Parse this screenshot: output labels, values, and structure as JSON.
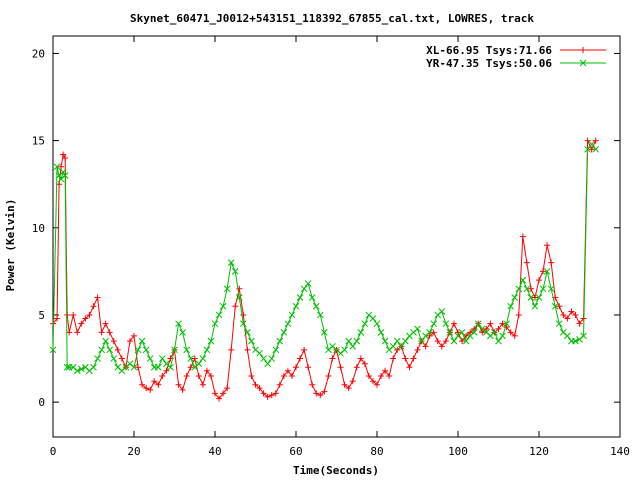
{
  "chart_data": {
    "type": "line",
    "title": "Skynet_60471_J0012+543151_118392_67855_cal.txt, LOWRES, track",
    "xlabel": "Time(Seconds)",
    "ylabel": "Power (Kelvin)",
    "xlim": [
      0,
      140
    ],
    "ylim": [
      -2,
      21
    ],
    "x_ticks": [
      0,
      20,
      40,
      60,
      80,
      100,
      120,
      140
    ],
    "y_ticks": [
      0,
      5,
      10,
      15,
      20
    ],
    "grid": false,
    "legend_position": "top-right",
    "series": [
      {
        "name": "XL-66.95 Tsys:71.66",
        "color": "#ff0000",
        "marker": "plus",
        "x": [
          0,
          1,
          1.5,
          2,
          2.5,
          3,
          3.5,
          4,
          5,
          6,
          7,
          8,
          9,
          10,
          11,
          12,
          13,
          14,
          15,
          16,
          17,
          18,
          19,
          20,
          21,
          22,
          23,
          24,
          25,
          26,
          27,
          28,
          29,
          30,
          31,
          32,
          33,
          34,
          35,
          36,
          37,
          38,
          39,
          40,
          41,
          42,
          43,
          44,
          45,
          46,
          47,
          48,
          49,
          50,
          51,
          52,
          53,
          54,
          55,
          56,
          57,
          58,
          59,
          60,
          61,
          62,
          63,
          64,
          65,
          66,
          67,
          68,
          69,
          70,
          71,
          72,
          73,
          74,
          75,
          76,
          77,
          78,
          79,
          80,
          81,
          82,
          83,
          84,
          85,
          86,
          87,
          88,
          89,
          90,
          91,
          92,
          93,
          94,
          95,
          96,
          97,
          98,
          99,
          100,
          101,
          102,
          103,
          104,
          105,
          106,
          107,
          108,
          109,
          110,
          111,
          112,
          113,
          114,
          115,
          116,
          117,
          118,
          119,
          120,
          121,
          122,
          123,
          124,
          125,
          126,
          127,
          128,
          129,
          130,
          131,
          132,
          133,
          134
        ],
        "y": [
          4.5,
          4.8,
          12.5,
          13.5,
          14.2,
          14.0,
          5.0,
          4.0,
          5.0,
          4.0,
          4.5,
          4.8,
          5.0,
          5.5,
          6.0,
          4.0,
          4.5,
          4.0,
          3.5,
          3.0,
          2.5,
          2.0,
          3.5,
          3.8,
          2.0,
          1.0,
          0.8,
          0.7,
          1.2,
          1.0,
          1.5,
          1.8,
          2.5,
          3.0,
          1.0,
          0.7,
          1.5,
          2.0,
          2.5,
          1.5,
          1.0,
          1.8,
          1.5,
          0.5,
          0.2,
          0.5,
          0.8,
          3.0,
          5.5,
          6.5,
          5.0,
          3.0,
          1.5,
          1.0,
          0.8,
          0.5,
          0.3,
          0.4,
          0.5,
          1.0,
          1.5,
          1.8,
          1.5,
          2.0,
          2.5,
          3.0,
          2.0,
          1.0,
          0.5,
          0.4,
          0.6,
          1.5,
          2.5,
          3.0,
          2.0,
          1.0,
          0.8,
          1.2,
          2.0,
          2.5,
          2.2,
          1.5,
          1.2,
          1.0,
          1.5,
          1.8,
          1.5,
          2.5,
          3.0,
          3.2,
          2.5,
          2.0,
          2.5,
          3.0,
          3.5,
          3.2,
          3.8,
          4.0,
          3.5,
          3.2,
          3.5,
          4.0,
          4.5,
          4.0,
          3.5,
          3.8,
          4.0,
          4.2,
          4.5,
          4.0,
          4.2,
          4.5,
          4.0,
          4.2,
          4.5,
          4.3,
          4.0,
          3.8,
          5.0,
          9.5,
          8.0,
          6.5,
          6.0,
          7.0,
          7.5,
          9.0,
          8.0,
          6.0,
          5.5,
          5.0,
          4.8,
          5.2,
          5.0,
          4.5,
          4.8,
          15.0,
          14.5,
          15.0
        ]
      },
      {
        "name": "YR-47.35 Tsys:50.06",
        "color": "#00c000",
        "marker": "cross",
        "x": [
          0,
          1,
          1.5,
          2,
          2.5,
          3,
          3.5,
          4,
          5,
          6,
          7,
          8,
          9,
          10,
          11,
          12,
          13,
          14,
          15,
          16,
          17,
          18,
          19,
          20,
          21,
          22,
          23,
          24,
          25,
          26,
          27,
          28,
          29,
          30,
          31,
          32,
          33,
          34,
          35,
          36,
          37,
          38,
          39,
          40,
          41,
          42,
          43,
          44,
          45,
          46,
          47,
          48,
          49,
          50,
          51,
          52,
          53,
          54,
          55,
          56,
          57,
          58,
          59,
          60,
          61,
          62,
          63,
          64,
          65,
          66,
          67,
          68,
          69,
          70,
          71,
          72,
          73,
          74,
          75,
          76,
          77,
          78,
          79,
          80,
          81,
          82,
          83,
          84,
          85,
          86,
          87,
          88,
          89,
          90,
          91,
          92,
          93,
          94,
          95,
          96,
          97,
          98,
          99,
          100,
          101,
          102,
          103,
          104,
          105,
          106,
          107,
          108,
          109,
          110,
          111,
          112,
          113,
          114,
          115,
          116,
          117,
          118,
          119,
          120,
          121,
          122,
          123,
          124,
          125,
          126,
          127,
          128,
          129,
          130,
          131,
          132,
          133,
          134
        ],
        "y": [
          3.0,
          13.5,
          13.0,
          12.8,
          13.2,
          13.0,
          2.0,
          2.0,
          2.0,
          1.8,
          1.9,
          2.0,
          1.8,
          2.0,
          2.5,
          3.0,
          3.5,
          3.0,
          2.5,
          2.0,
          1.8,
          2.0,
          2.2,
          2.0,
          3.0,
          3.5,
          3.0,
          2.5,
          2.0,
          2.0,
          2.5,
          2.2,
          2.0,
          3.0,
          4.5,
          4.0,
          3.0,
          2.5,
          2.0,
          2.2,
          2.5,
          3.0,
          3.5,
          4.5,
          5.0,
          5.5,
          6.5,
          8.0,
          7.5,
          6.0,
          4.5,
          4.0,
          3.5,
          3.0,
          2.8,
          2.5,
          2.2,
          2.5,
          3.0,
          3.5,
          4.0,
          4.5,
          5.0,
          5.5,
          6.0,
          6.5,
          6.8,
          6.0,
          5.5,
          5.0,
          4.0,
          3.0,
          3.2,
          3.0,
          2.8,
          3.0,
          3.5,
          3.2,
          3.5,
          4.0,
          4.5,
          5.0,
          4.8,
          4.5,
          4.0,
          3.5,
          3.0,
          3.2,
          3.5,
          3.2,
          3.5,
          3.8,
          4.0,
          4.2,
          3.5,
          3.8,
          4.0,
          4.5,
          5.0,
          5.2,
          4.5,
          4.0,
          3.5,
          3.8,
          4.0,
          3.5,
          3.8,
          4.0,
          4.5,
          4.2,
          4.0,
          3.8,
          4.0,
          3.5,
          3.8,
          4.5,
          5.5,
          6.0,
          6.5,
          7.0,
          6.5,
          6.0,
          5.5,
          6.0,
          6.5,
          7.5,
          6.5,
          5.5,
          4.5,
          4.0,
          3.8,
          3.5,
          3.5,
          3.6,
          3.8,
          14.5,
          14.8,
          14.5
        ]
      }
    ]
  }
}
